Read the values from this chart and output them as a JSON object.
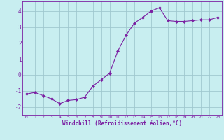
{
  "x": [
    0,
    1,
    2,
    3,
    4,
    5,
    6,
    7,
    8,
    9,
    10,
    11,
    12,
    13,
    14,
    15,
    16,
    17,
    18,
    19,
    20,
    21,
    22,
    23
  ],
  "y": [
    -1.2,
    -1.1,
    -1.3,
    -1.5,
    -1.8,
    -1.6,
    -1.55,
    -1.4,
    -0.7,
    -0.3,
    0.1,
    1.5,
    2.5,
    3.25,
    3.6,
    4.0,
    4.2,
    3.4,
    3.35,
    3.35,
    3.4,
    3.45,
    3.45,
    3.6
  ],
  "line_color": "#7b1fa2",
  "marker": "D",
  "marker_size": 2.0,
  "bg_color": "#c8eef0",
  "grid_color": "#a0c8cf",
  "xlabel": "Windchill (Refroidissement éolien,°C)",
  "xlabel_color": "#7b1fa2",
  "tick_color": "#7b1fa2",
  "ylim": [
    -2.5,
    4.6
  ],
  "xlim": [
    -0.5,
    23.5
  ],
  "yticks": [
    -2,
    -1,
    0,
    1,
    2,
    3,
    4
  ],
  "xticks": [
    0,
    1,
    2,
    3,
    4,
    5,
    6,
    7,
    8,
    9,
    10,
    11,
    12,
    13,
    14,
    15,
    16,
    17,
    18,
    19,
    20,
    21,
    22,
    23
  ]
}
